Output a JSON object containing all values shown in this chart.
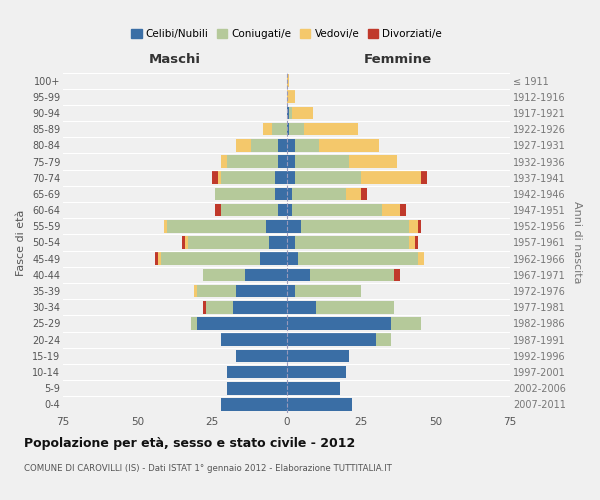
{
  "age_groups": [
    "100+",
    "95-99",
    "90-94",
    "85-89",
    "80-84",
    "75-79",
    "70-74",
    "65-69",
    "60-64",
    "55-59",
    "50-54",
    "45-49",
    "40-44",
    "35-39",
    "30-34",
    "25-29",
    "20-24",
    "15-19",
    "10-14",
    "5-9",
    "0-4"
  ],
  "birth_years": [
    "≤ 1911",
    "1912-1916",
    "1917-1921",
    "1922-1926",
    "1927-1931",
    "1932-1936",
    "1937-1941",
    "1942-1946",
    "1947-1951",
    "1952-1956",
    "1957-1961",
    "1962-1966",
    "1967-1971",
    "1972-1976",
    "1977-1981",
    "1982-1986",
    "1987-1991",
    "1992-1996",
    "1997-2001",
    "2002-2006",
    "2007-2011"
  ],
  "maschi_celibi": [
    0,
    0,
    0,
    0,
    3,
    3,
    4,
    4,
    3,
    7,
    6,
    9,
    14,
    17,
    18,
    30,
    22,
    17,
    20,
    20,
    22
  ],
  "maschi_coniugati": [
    0,
    0,
    0,
    5,
    9,
    17,
    18,
    20,
    19,
    33,
    27,
    33,
    14,
    13,
    9,
    2,
    0,
    0,
    0,
    0,
    0
  ],
  "maschi_vedovi": [
    0,
    0,
    0,
    3,
    5,
    2,
    1,
    0,
    0,
    1,
    1,
    1,
    0,
    1,
    0,
    0,
    0,
    0,
    0,
    0,
    0
  ],
  "maschi_divorziati": [
    0,
    0,
    0,
    0,
    0,
    0,
    2,
    0,
    2,
    0,
    1,
    1,
    0,
    0,
    1,
    0,
    0,
    0,
    0,
    0,
    0
  ],
  "femmine_nubili": [
    0,
    0,
    1,
    1,
    3,
    3,
    3,
    2,
    2,
    5,
    3,
    4,
    8,
    3,
    10,
    35,
    30,
    21,
    20,
    18,
    22
  ],
  "femmine_coniugate": [
    0,
    0,
    1,
    5,
    8,
    18,
    22,
    18,
    30,
    36,
    38,
    40,
    28,
    22,
    26,
    10,
    5,
    0,
    0,
    0,
    0
  ],
  "femmine_vedove": [
    1,
    3,
    7,
    18,
    20,
    16,
    20,
    5,
    6,
    3,
    2,
    2,
    0,
    0,
    0,
    0,
    0,
    0,
    0,
    0,
    0
  ],
  "femmine_divorziate": [
    0,
    0,
    0,
    0,
    0,
    0,
    2,
    2,
    2,
    1,
    1,
    0,
    2,
    0,
    0,
    0,
    0,
    0,
    0,
    0,
    0
  ],
  "color_celibi": "#3a6ea5",
  "color_coniugati": "#b5c99a",
  "color_vedovi": "#f4c86b",
  "color_divorziati": "#c0392b",
  "xlim": 75,
  "xticks": [
    -75,
    -50,
    -25,
    0,
    25,
    50,
    75
  ],
  "title": "Popolazione per età, sesso e stato civile - 2012",
  "subtitle": "COMUNE DI CAROVILLI (IS) - Dati ISTAT 1° gennaio 2012 - Elaborazione TUTTITALIA.IT",
  "ylabel_left": "Fasce di età",
  "ylabel_right": "Anni di nascita",
  "xlabel_maschi": "Maschi",
  "xlabel_femmine": "Femmine",
  "legend_labels": [
    "Celibi/Nubili",
    "Coniugati/e",
    "Vedovi/e",
    "Divorziati/e"
  ],
  "background_color": "#f0f0f0",
  "bar_height": 0.78
}
